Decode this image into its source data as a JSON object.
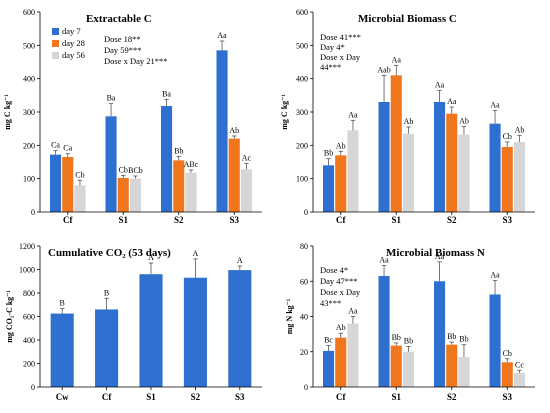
{
  "colors": {
    "day7": "#2e6fd0",
    "day28": "#f0761e",
    "day56": "#d6d6d6",
    "single": "#2e6fd0",
    "axis": "#000000",
    "error_bar": "#555555"
  },
  "chart_data": [
    {
      "type": "bar",
      "title": "Extractable C",
      "ylabel": "mg C kg⁻¹",
      "ylim": [
        0,
        600
      ],
      "yticks": [
        0,
        100,
        200,
        300,
        400,
        500,
        600
      ],
      "categories": [
        "Cf",
        "S1",
        "S2",
        "S3"
      ],
      "series": [
        {
          "name": "day 7",
          "values": [
            172,
            287,
            318,
            485
          ],
          "errors": [
            12,
            38,
            20,
            28
          ],
          "labels": [
            "Ca",
            "Ba",
            "Ba",
            "Aa"
          ]
        },
        {
          "name": "day 28",
          "values": [
            165,
            102,
            155,
            220
          ],
          "errors": [
            10,
            8,
            12,
            8
          ],
          "labels": [
            "Ca",
            "Cb",
            "Bb",
            "Ab"
          ]
        },
        {
          "name": "day 56",
          "values": [
            80,
            100,
            118,
            128
          ],
          "errors": [
            15,
            8,
            8,
            18
          ],
          "labels": [
            "Cb",
            "BCb",
            "ABc",
            "Ac"
          ]
        }
      ],
      "legend": {
        "placement": "top-left"
      },
      "stats": [
        "Dose 18**",
        "Day 59***",
        "Dose x Day 21***"
      ]
    },
    {
      "type": "bar",
      "title": "Microbial Biomass C",
      "ylabel": "mg C kg⁻¹",
      "ylim": [
        0,
        600
      ],
      "yticks": [
        0,
        100,
        200,
        300,
        400,
        500,
        600
      ],
      "categories": [
        "Cf",
        "S1",
        "S2",
        "S3"
      ],
      "series": [
        {
          "name": "day 7",
          "values": [
            140,
            330,
            330,
            265
          ],
          "errors": [
            20,
            80,
            35,
            40
          ],
          "labels": [
            "Bb",
            "Aab",
            "Aa",
            "Aa"
          ]
        },
        {
          "name": "day 28",
          "values": [
            170,
            410,
            295,
            195
          ],
          "errors": [
            12,
            30,
            20,
            15
          ],
          "labels": [
            "Ab",
            "Aa",
            "Aa",
            "Cb"
          ]
        },
        {
          "name": "day 56",
          "values": [
            245,
            235,
            232,
            210
          ],
          "errors": [
            30,
            20,
            25,
            20
          ],
          "labels": [
            "Aa",
            "Ab",
            "Ab",
            "Ab"
          ]
        }
      ],
      "stats": [
        "Dose 41***",
        "Day 4*",
        "Dose x Day",
        "44***"
      ]
    },
    {
      "type": "bar",
      "title": "Cumulative CO₂ (53 days)",
      "ylabel": "mg CO₂-C kg⁻¹",
      "ylim": [
        0,
        1200
      ],
      "yticks": [
        0,
        200,
        400,
        600,
        800,
        1000,
        1200
      ],
      "categories": [
        "Cw",
        "Cf",
        "S1",
        "S2",
        "S3"
      ],
      "series": [
        {
          "values": [
            625,
            660,
            960,
            930,
            995
          ],
          "errors": [
            45,
            95,
            95,
            160,
            35
          ],
          "labels": [
            "B",
            "B",
            "A",
            "A",
            "A"
          ]
        }
      ]
    },
    {
      "type": "bar",
      "title": "Microbial Biomass N",
      "ylabel": "mg N kg⁻¹",
      "ylim": [
        0,
        80
      ],
      "yticks": [
        0,
        20,
        40,
        60,
        80
      ],
      "categories": [
        "Cf",
        "S1",
        "S2",
        "S3"
      ],
      "series": [
        {
          "name": "day 7",
          "values": [
            20.5,
            63,
            60,
            52.5
          ],
          "errors": [
            3,
            6,
            11,
            8
          ],
          "labels": [
            "Bc",
            "Aa",
            "Aa",
            "Aa"
          ]
        },
        {
          "name": "day 28",
          "values": [
            28,
            23.5,
            24,
            14
          ],
          "errors": [
            2.5,
            1.5,
            1.5,
            2
          ],
          "labels": [
            "Ab",
            "Bb",
            "Bb",
            "Cb"
          ]
        },
        {
          "name": "day 56",
          "values": [
            36,
            20,
            17,
            8
          ],
          "errors": [
            4,
            3,
            7,
            1.5
          ],
          "labels": [
            "Aa",
            "Bb",
            "Bb",
            "Cc"
          ]
        }
      ],
      "stats": [
        "Dose 4*",
        "Day 47***",
        "Dose x Day",
        "43***"
      ]
    }
  ]
}
